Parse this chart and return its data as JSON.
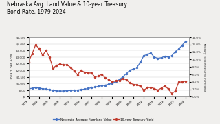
{
  "title": "Nebraska Avg. Land Value & 10-year Treasury\nBond Rate, 1979-2024",
  "years": [
    1979,
    1980,
    1981,
    1982,
    1983,
    1984,
    1985,
    1986,
    1987,
    1988,
    1989,
    1990,
    1991,
    1992,
    1993,
    1994,
    1995,
    1996,
    1997,
    1998,
    1999,
    2000,
    2001,
    2002,
    2003,
    2004,
    2005,
    2006,
    2007,
    2008,
    2009,
    2010,
    2011,
    2012,
    2013,
    2014,
    2015,
    2016,
    2017,
    2018,
    2019,
    2020,
    2021,
    2022,
    2023,
    2024
  ],
  "land_value": [
    600,
    640,
    680,
    650,
    610,
    580,
    530,
    480,
    450,
    430,
    440,
    460,
    470,
    490,
    510,
    540,
    570,
    620,
    680,
    730,
    780,
    830,
    880,
    940,
    1020,
    1150,
    1300,
    1500,
    1750,
    2000,
    2100,
    2200,
    2600,
    3100,
    3200,
    3300,
    3000,
    2900,
    2950,
    3050,
    3000,
    3100,
    3400,
    3600,
    3900,
    4200
  ],
  "treasury_yield": [
    9.4,
    11.5,
    13.9,
    13.0,
    11.1,
    12.4,
    10.6,
    7.7,
    8.4,
    8.8,
    8.5,
    8.6,
    7.9,
    7.0,
    5.9,
    7.1,
    6.6,
    6.4,
    6.4,
    5.3,
    5.6,
    6.0,
    5.0,
    4.6,
    4.0,
    4.3,
    4.3,
    4.8,
    4.6,
    3.7,
    3.3,
    3.2,
    2.8,
    1.8,
    2.4,
    2.5,
    2.2,
    1.8,
    2.3,
    2.9,
    2.1,
    0.9,
    1.5,
    3.9,
    4.0,
    4.2
  ],
  "land_color": "#4472c4",
  "treasury_color": "#c0392b",
  "bg_color": "#f0efed",
  "plot_bg": "#ffffff",
  "ylabel_left": "Dollars per Acre",
  "ylabel_right": "Treasury Yield Measured in Percent",
  "legend_land": "Nebraska Average Farmland Value",
  "legend_treasury": "10-year Treasury Yield",
  "ylim_land": [
    0,
    4500
  ],
  "ylim_treasury": [
    0,
    16
  ],
  "yticks_land": [
    0,
    500,
    1000,
    1500,
    2000,
    2500,
    3000,
    3500,
    4000,
    4500
  ],
  "yticks_treasury": [
    0,
    2,
    4,
    6,
    8,
    10,
    12,
    14,
    16
  ],
  "ytick_labels_land": [
    "$0",
    "$500",
    "$1,000",
    "$1,500",
    "$2,000",
    "$2,500",
    "$3,000",
    "$3,500",
    "$4,000",
    "$4,500"
  ],
  "ytick_labels_treasury": [
    "0.0%",
    "2.0%",
    "4.0%",
    "6.0%",
    "8.0%",
    "10.0%",
    "12.0%",
    "14.0%",
    "16.0%"
  ],
  "xtick_labels": [
    "1979",
    "1982",
    "1985",
    "1988",
    "1991",
    "1994",
    "1997",
    "2000",
    "2003",
    "2006",
    "2009",
    "2012",
    "2015",
    "2018",
    "2021",
    "2024"
  ],
  "xtick_years": [
    1979,
    1982,
    1985,
    1988,
    1991,
    1994,
    1997,
    2000,
    2003,
    2006,
    2009,
    2012,
    2015,
    2018,
    2021,
    2024
  ]
}
